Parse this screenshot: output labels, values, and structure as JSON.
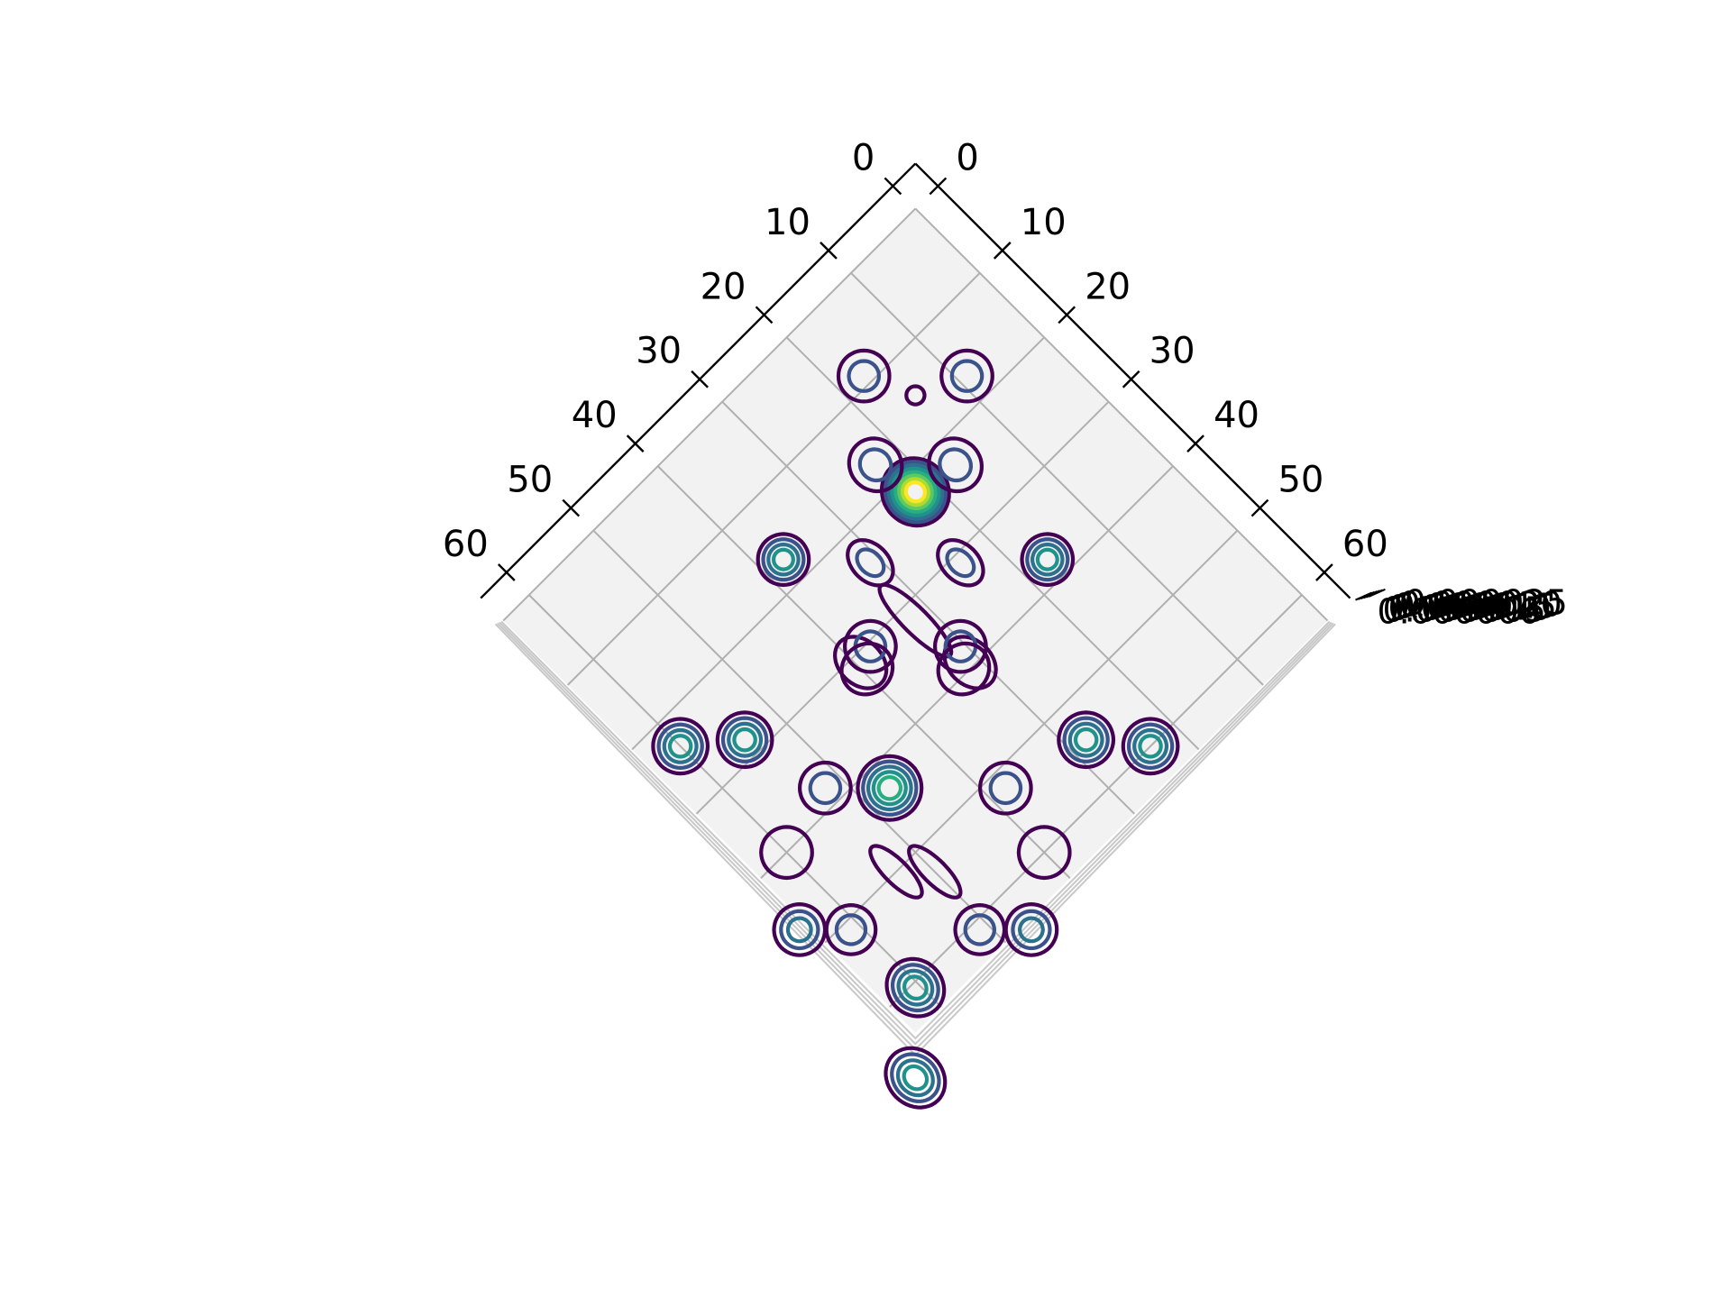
{
  "chart_data": {
    "type": "contour",
    "projection": "3d",
    "view": "top-down, rotated 45 degrees",
    "title": "",
    "xlabel": "",
    "ylabel": "",
    "zlabel": "",
    "x_ticks": [
      "0",
      "10",
      "20",
      "30",
      "40",
      "50",
      "60"
    ],
    "y_ticks": [
      "0",
      "10",
      "20",
      "30",
      "40",
      "50",
      "60"
    ],
    "z_ticks": [
      "0.000000",
      "0.000005",
      "0.000010",
      "0.000015",
      "0.000020",
      "0.000025"
    ],
    "xlim": [
      0,
      64
    ],
    "ylim": [
      0,
      64
    ],
    "grid": true,
    "colormap": "viridis",
    "level_colors": [
      "#440154",
      "#3b528b",
      "#2c728e",
      "#21918c",
      "#28ae80",
      "#5ec962",
      "#addc30",
      "#fde725"
    ],
    "blobs": [
      {
        "x": 22.0,
        "y": 22.0,
        "rx": 3.6,
        "ry": 3.8,
        "levels": 8
      },
      {
        "x": 9.0,
        "y": 17.0,
        "rx": 2.8,
        "ry": 2.8,
        "levels": 2
      },
      {
        "x": 17.0,
        "y": 9.0,
        "rx": 2.8,
        "ry": 2.8,
        "levels": 2
      },
      {
        "x": 14.5,
        "y": 14.5,
        "rx": 1.0,
        "ry": 1.0,
        "levels": 1
      },
      {
        "x": 16.8,
        "y": 23.0,
        "rx": 2.8,
        "ry": 3.0,
        "levels": 2
      },
      {
        "x": 23.0,
        "y": 16.8,
        "rx": 2.8,
        "ry": 3.0,
        "levels": 2
      },
      {
        "x": 37.5,
        "y": 17.0,
        "rx": 2.8,
        "ry": 2.8,
        "levels": 4
      },
      {
        "x": 17.0,
        "y": 37.5,
        "rx": 2.8,
        "ry": 2.8,
        "levels": 4
      },
      {
        "x": 31.0,
        "y": 24.0,
        "rx": 2.0,
        "ry": 2.9,
        "levels": 2
      },
      {
        "x": 24.0,
        "y": 31.0,
        "rx": 2.0,
        "ry": 2.9,
        "levels": 2
      },
      {
        "x": 39.5,
        "y": 31.0,
        "rx": 2.4,
        "ry": 3.2,
        "levels": 1
      },
      {
        "x": 31.0,
        "y": 39.5,
        "rx": 2.4,
        "ry": 3.2,
        "levels": 1
      },
      {
        "x": 32.0,
        "y": 32.0,
        "rx": 1.4,
        "ry": 5.4,
        "levels": 1
      },
      {
        "x": 37.5,
        "y": 30.5,
        "rx": 2.8,
        "ry": 2.8,
        "levels": 2
      },
      {
        "x": 30.5,
        "y": 37.5,
        "rx": 2.8,
        "ry": 2.8,
        "levels": 2
      },
      {
        "x": 32.0,
        "y": 39.5,
        "rx": 2.9,
        "ry": 2.7,
        "levels": 1
      },
      {
        "x": 39.5,
        "y": 32.0,
        "rx": 2.9,
        "ry": 2.7,
        "levels": 1
      },
      {
        "x": 60.0,
        "y": 23.5,
        "rx": 3.0,
        "ry": 3.0,
        "levels": 4
      },
      {
        "x": 23.5,
        "y": 60.0,
        "rx": 3.0,
        "ry": 3.0,
        "levels": 4
      },
      {
        "x": 54.5,
        "y": 28.0,
        "rx": 3.0,
        "ry": 3.0,
        "levels": 4
      },
      {
        "x": 28.0,
        "y": 54.5,
        "rx": 3.0,
        "ry": 3.0,
        "levels": 4
      },
      {
        "x": 52.0,
        "y": 38.0,
        "rx": 2.8,
        "ry": 2.8,
        "levels": 2
      },
      {
        "x": 38.0,
        "y": 52.0,
        "rx": 2.8,
        "ry": 2.8,
        "levels": 2
      },
      {
        "x": 47.0,
        "y": 43.0,
        "rx": 3.5,
        "ry": 3.5,
        "levels": 5
      },
      {
        "x": 53.0,
        "y": 50.0,
        "rx": 1.3,
        "ry": 3.8,
        "levels": 1
      },
      {
        "x": 50.0,
        "y": 53.0,
        "rx": 1.3,
        "ry": 3.8,
        "levels": 1
      },
      {
        "x": 60.0,
        "y": 40.0,
        "rx": 2.8,
        "ry": 2.8,
        "levels": 1
      },
      {
        "x": 40.0,
        "y": 60.0,
        "rx": 2.8,
        "ry": 2.8,
        "levels": 1
      },
      {
        "x": 65.0,
        "y": 47.0,
        "rx": 2.8,
        "ry": 2.8,
        "levels": 3
      },
      {
        "x": 47.0,
        "y": 65.0,
        "rx": 2.8,
        "ry": 2.8,
        "levels": 3
      },
      {
        "x": 61.0,
        "y": 51.0,
        "rx": 2.7,
        "ry": 2.7,
        "levels": 2
      },
      {
        "x": 51.0,
        "y": 61.0,
        "rx": 2.7,
        "ry": 2.7,
        "levels": 2
      },
      {
        "x": 60.5,
        "y": 60.5,
        "rx": 3.0,
        "ry": 3.3,
        "levels": 4
      },
      {
        "x": 67.5,
        "y": 67.5,
        "rx": 3.0,
        "ry": 3.5,
        "levels": 4
      }
    ]
  }
}
